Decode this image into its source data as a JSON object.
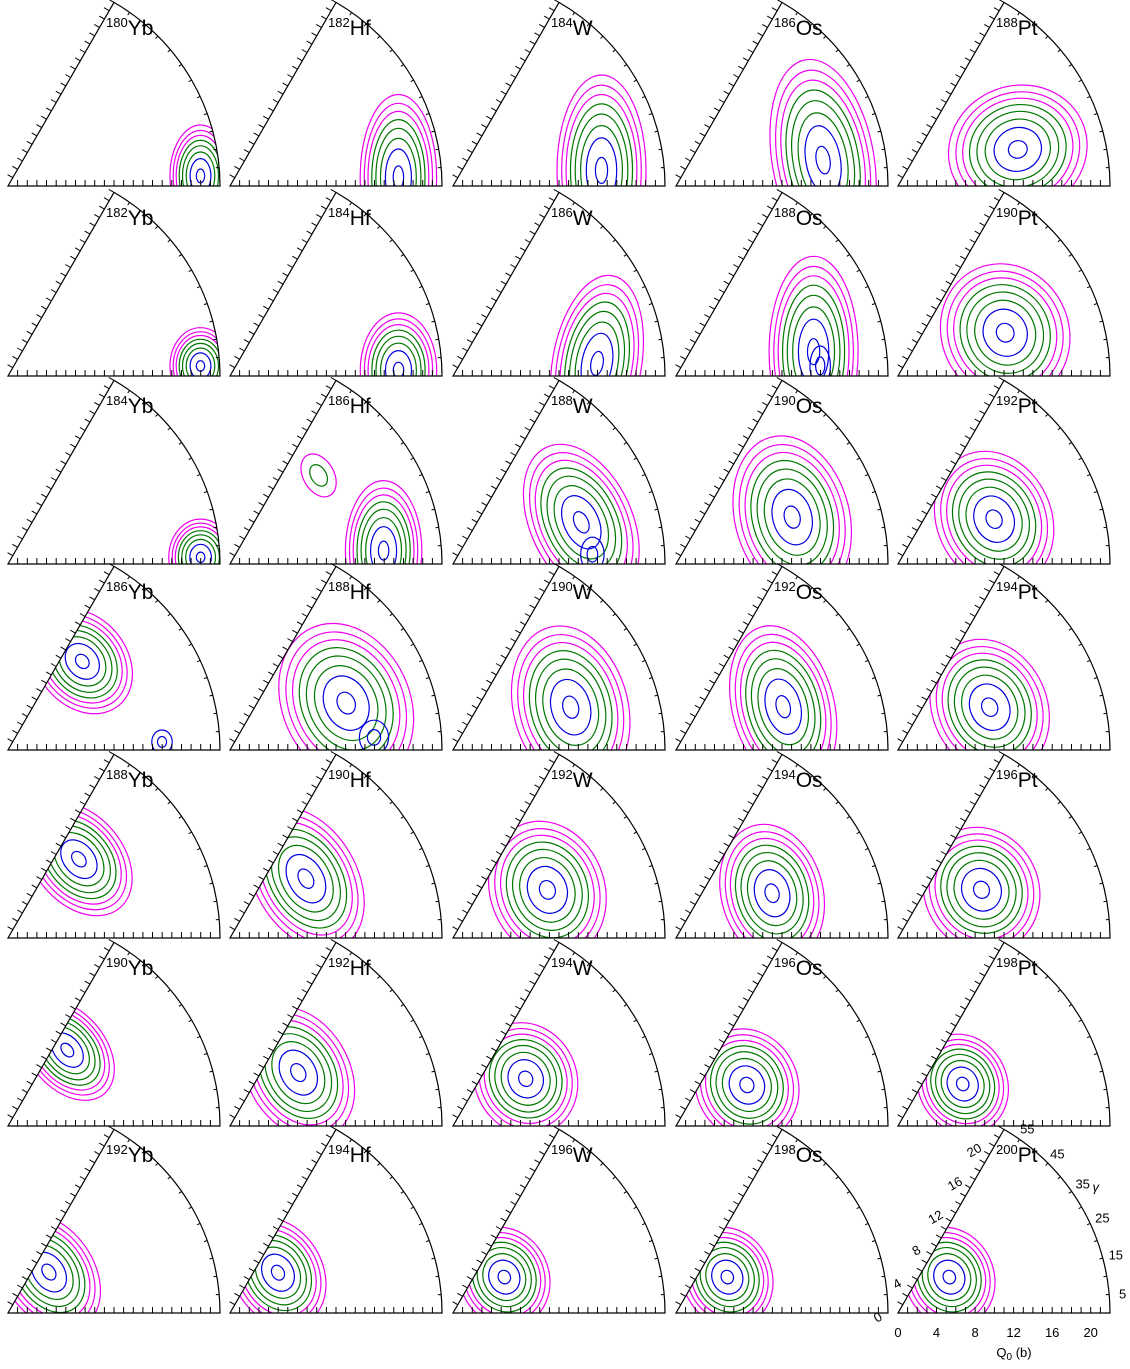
{
  "chart_data": {
    "type": "contour",
    "description_grid": "Potential energy surfaces in the beta-gamma plane (sextant plots)",
    "rows": 7,
    "cols": 5,
    "axes": {
      "x": {
        "label": "Q",
        "label_sub": "0",
        "label_unit": " (b)",
        "range": [
          0,
          22
        ],
        "ticks": [
          "0",
          "4",
          "8",
          "12",
          "16",
          "20"
        ]
      },
      "radial": {
        "range": [
          0,
          22
        ],
        "ticks": [
          "0",
          "4",
          "8",
          "12",
          "16",
          "20"
        ]
      },
      "gamma": {
        "label": "γ",
        "range": [
          0,
          60
        ],
        "ticks": [
          "5",
          "15",
          "25",
          "35",
          "45",
          "55"
        ]
      }
    },
    "contour_colors": {
      "inner": "#0000dd",
      "middle": "#007700",
      "outer": "#ee00ee"
    },
    "panels": [
      {
        "A": "180",
        "el": "Yb",
        "min": [
          20,
          3
        ],
        "ext": [
          2.4,
          4.0
        ],
        "rot": 0,
        "second": null,
        "oblate": null
      },
      {
        "A": "182",
        "el": "Hf",
        "min": [
          17.5,
          3
        ],
        "ext": [
          3.0,
          6.5
        ],
        "rot": 0,
        "second": null,
        "oblate": null
      },
      {
        "A": "184",
        "el": "W",
        "min": [
          15.5,
          6
        ],
        "ext": [
          3.5,
          7.5
        ],
        "rot": 0,
        "second": null,
        "oblate": null
      },
      {
        "A": "186",
        "el": "Os",
        "min": [
          15.5,
          10
        ],
        "ext": [
          4.0,
          8.0
        ],
        "rot": -10,
        "second": null,
        "oblate": null
      },
      {
        "A": "188",
        "el": "Pt",
        "min": [
          13,
          17
        ],
        "ext": [
          5.5,
          5.0
        ],
        "rot": -20,
        "second": null,
        "oblate": null
      },
      {
        "A": "182",
        "el": "Yb",
        "min": [
          20,
          3
        ],
        "ext": [
          2.4,
          3.0
        ],
        "rot": 0,
        "second": null,
        "oblate": null
      },
      {
        "A": "184",
        "el": "Hf",
        "min": [
          17.5,
          2
        ],
        "ext": [
          3.0,
          4.5
        ],
        "rot": 0,
        "second": null,
        "oblate": null
      },
      {
        "A": "186",
        "el": "W",
        "min": [
          15,
          5
        ],
        "ext": [
          3.5,
          7.0
        ],
        "rot": 10,
        "second": null,
        "oblate": null
      },
      {
        "A": "188",
        "el": "Os",
        "min": [
          14.5,
          10
        ],
        "ext": [
          3.5,
          7.5
        ],
        "rot": 0,
        "second": [
          15,
          4
        ],
        "oblate": null
      },
      {
        "A": "190",
        "el": "Pt",
        "min": [
          12,
          22
        ],
        "ext": [
          5.0,
          5.5
        ],
        "rot": -25,
        "second": null,
        "oblate": null
      },
      {
        "A": "184",
        "el": "Yb",
        "min": [
          20,
          2
        ],
        "ext": [
          2.5,
          3.0
        ],
        "rot": 0,
        "second": null,
        "oblate": null
      },
      {
        "A": "186",
        "el": "Hf",
        "min": [
          16,
          5
        ],
        "ext": [
          3.0,
          5.5
        ],
        "rot": 0,
        "second": null,
        "oblate": [
          13,
          45
        ]
      },
      {
        "A": "188",
        "el": "W",
        "min": [
          14,
          18
        ],
        "ext": [
          4.0,
          6.5
        ],
        "rot": -25,
        "second": [
          14.5,
          4
        ],
        "oblate": null
      },
      {
        "A": "190",
        "el": "Os",
        "min": [
          13,
          22
        ],
        "ext": [
          4.5,
          6.5
        ],
        "rot": -15,
        "second": null,
        "oblate": null
      },
      {
        "A": "192",
        "el": "Pt",
        "min": [
          11,
          25
        ],
        "ext": [
          4.5,
          5.5
        ],
        "rot": -25,
        "second": null,
        "oblate": null
      },
      {
        "A": "186",
        "el": "Yb",
        "min": [
          12,
          50
        ],
        "ext": [
          3.5,
          4.5
        ],
        "rot": -40,
        "second": [
          16,
          3
        ],
        "oblate": null
      },
      {
        "A": "188",
        "el": "Hf",
        "min": [
          13,
          22
        ],
        "ext": [
          5.0,
          6.5
        ],
        "rot": -25,
        "second": [
          15,
          5
        ],
        "oblate": null
      },
      {
        "A": "190",
        "el": "W",
        "min": [
          13,
          20
        ],
        "ext": [
          4.5,
          6.5
        ],
        "rot": -15,
        "second": null,
        "oblate": null
      },
      {
        "A": "192",
        "el": "Os",
        "min": [
          12,
          22
        ],
        "ext": [
          4.0,
          6.5
        ],
        "rot": -15,
        "second": null,
        "oblate": null
      },
      {
        "A": "194",
        "el": "Pt",
        "min": [
          10.5,
          25
        ],
        "ext": [
          4.5,
          5.5
        ],
        "rot": -25,
        "second": null,
        "oblate": null
      },
      {
        "A": "188",
        "el": "Yb",
        "min": [
          11,
          48
        ],
        "ext": [
          3.5,
          5.0
        ],
        "rot": -40,
        "second": null,
        "oblate": null
      },
      {
        "A": "190",
        "el": "Hf",
        "min": [
          10,
          38
        ],
        "ext": [
          4.0,
          6.0
        ],
        "rot": -30,
        "second": null,
        "oblate": null
      },
      {
        "A": "192",
        "el": "W",
        "min": [
          11,
          27
        ],
        "ext": [
          4.5,
          5.5
        ],
        "rot": -20,
        "second": null,
        "oblate": null
      },
      {
        "A": "194",
        "el": "Os",
        "min": [
          11,
          25
        ],
        "ext": [
          4.0,
          5.5
        ],
        "rot": -15,
        "second": null,
        "oblate": null
      },
      {
        "A": "196",
        "el": "Pt",
        "min": [
          10,
          30
        ],
        "ext": [
          4.5,
          5.0
        ],
        "rot": -25,
        "second": null,
        "oblate": null
      },
      {
        "A": "190",
        "el": "Yb",
        "min": [
          10,
          52
        ],
        "ext": [
          3.0,
          4.5
        ],
        "rot": -40,
        "second": null,
        "oblate": null
      },
      {
        "A": "192",
        "el": "Hf",
        "min": [
          9,
          38
        ],
        "ext": [
          4.0,
          5.5
        ],
        "rot": -30,
        "second": null,
        "oblate": null
      },
      {
        "A": "194",
        "el": "W",
        "min": [
          9,
          33
        ],
        "ext": [
          4.0,
          4.5
        ],
        "rot": -25,
        "second": null,
        "oblate": null
      },
      {
        "A": "196",
        "el": "Os",
        "min": [
          8.5,
          30
        ],
        "ext": [
          4.0,
          4.5
        ],
        "rot": -25,
        "second": null,
        "oblate": null
      },
      {
        "A": "198",
        "el": "Pt",
        "min": [
          8,
          33
        ],
        "ext": [
          3.5,
          4.0
        ],
        "rot": -25,
        "second": null,
        "oblate": null
      },
      {
        "A": "192",
        "el": "Yb",
        "min": [
          6,
          45
        ],
        "ext": [
          3.5,
          5.0
        ],
        "rot": -35,
        "second": null,
        "oblate": null
      },
      {
        "A": "194",
        "el": "Hf",
        "min": [
          6.5,
          40
        ],
        "ext": [
          3.5,
          4.5
        ],
        "rot": -30,
        "second": null,
        "oblate": null
      },
      {
        "A": "196",
        "el": "W",
        "min": [
          6.5,
          35
        ],
        "ext": [
          3.5,
          4.0
        ],
        "rot": -25,
        "second": null,
        "oblate": null
      },
      {
        "A": "198",
        "el": "Os",
        "min": [
          6.5,
          35
        ],
        "ext": [
          3.5,
          4.0
        ],
        "rot": -25,
        "second": null,
        "oblate": null
      },
      {
        "A": "200",
        "el": "Pt",
        "min": [
          6.5,
          35
        ],
        "ext": [
          3.5,
          4.0
        ],
        "rot": -25,
        "second": null,
        "oblate": null
      }
    ]
  }
}
